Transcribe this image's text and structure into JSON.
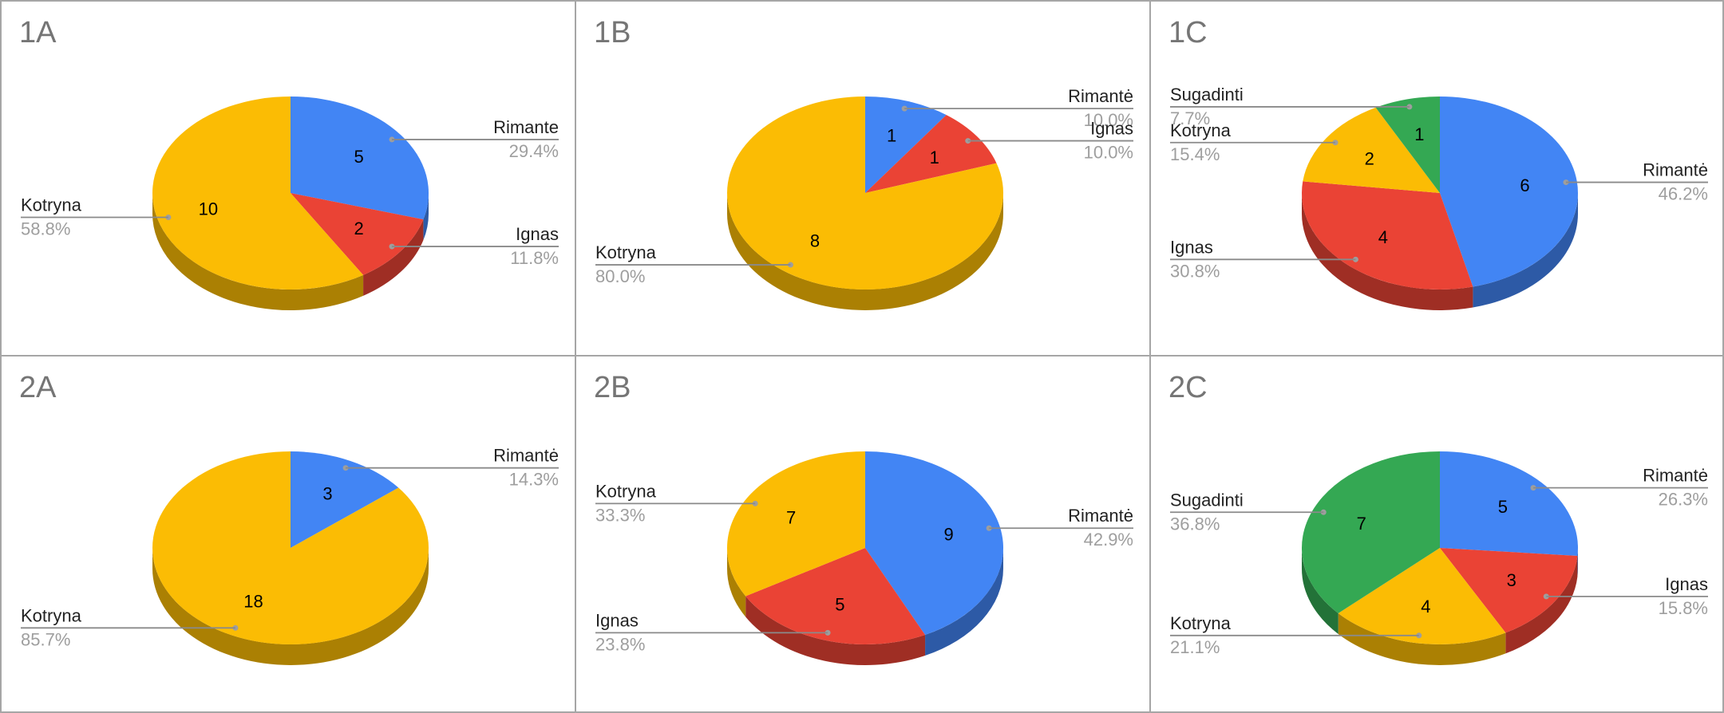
{
  "colors": {
    "Rimante": "#4285f4",
    "Rimantė": "#4285f4",
    "Ignas": "#ea4335",
    "Kotryna": "#fbbc04",
    "Sugadinti": "#34a853"
  },
  "chart_data": [
    {
      "type": "pie",
      "title": "1A",
      "three_d": true,
      "slices": [
        {
          "label": "Rimante",
          "value": 5,
          "percent": "29.4%"
        },
        {
          "label": "Ignas",
          "value": 2,
          "percent": "11.8%"
        },
        {
          "label": "Kotryna",
          "value": 10,
          "percent": "58.8%"
        }
      ]
    },
    {
      "type": "pie",
      "title": "1B",
      "three_d": true,
      "slices": [
        {
          "label": "Rimantė",
          "value": 1,
          "percent": "10.0%"
        },
        {
          "label": "Ignas",
          "value": 1,
          "percent": "10.0%"
        },
        {
          "label": "Kotryna",
          "value": 8,
          "percent": "80.0%"
        }
      ]
    },
    {
      "type": "pie",
      "title": "1C",
      "three_d": true,
      "slices": [
        {
          "label": "Rimantė",
          "value": 6,
          "percent": "46.2%"
        },
        {
          "label": "Ignas",
          "value": 4,
          "percent": "30.8%"
        },
        {
          "label": "Kotryna",
          "value": 2,
          "percent": "15.4%"
        },
        {
          "label": "Sugadinti",
          "value": 1,
          "percent": "7.7%"
        }
      ]
    },
    {
      "type": "pie",
      "title": "2A",
      "three_d": true,
      "slices": [
        {
          "label": "Rimantė",
          "value": 3,
          "percent": "14.3%"
        },
        {
          "label": "Kotryna",
          "value": 18,
          "percent": "85.7%"
        }
      ]
    },
    {
      "type": "pie",
      "title": "2B",
      "three_d": true,
      "slices": [
        {
          "label": "Rimantė",
          "value": 9,
          "percent": "42.9%"
        },
        {
          "label": "Ignas",
          "value": 5,
          "percent": "23.8%"
        },
        {
          "label": "Kotryna",
          "value": 7,
          "percent": "33.3%"
        }
      ]
    },
    {
      "type": "pie",
      "title": "2C",
      "three_d": true,
      "slices": [
        {
          "label": "Rimantė",
          "value": 5,
          "percent": "26.3%"
        },
        {
          "label": "Ignas",
          "value": 3,
          "percent": "15.8%"
        },
        {
          "label": "Kotryna",
          "value": 4,
          "percent": "21.1%"
        },
        {
          "label": "Sugadinti",
          "value": 7,
          "percent": "36.8%"
        }
      ]
    }
  ]
}
